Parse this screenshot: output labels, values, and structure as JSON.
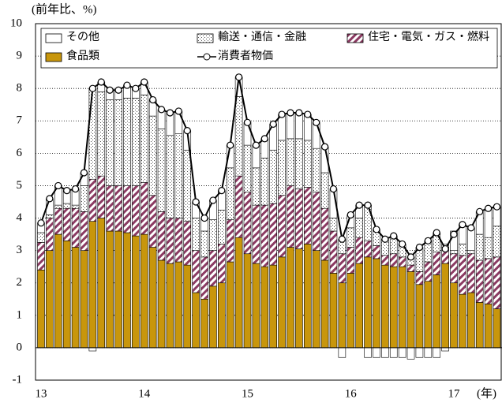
{
  "chart_data": {
    "type": "bar",
    "y_label": "(前年比、%)",
    "x_label": "(年)",
    "categories": [
      "13",
      null,
      null,
      null,
      null,
      null,
      null,
      null,
      null,
      null,
      null,
      null,
      "14",
      null,
      null,
      null,
      null,
      null,
      null,
      null,
      null,
      null,
      null,
      null,
      "15",
      null,
      null,
      null,
      null,
      null,
      null,
      null,
      null,
      null,
      null,
      null,
      "16",
      null,
      null,
      null,
      null,
      null,
      null,
      null,
      null,
      null,
      null,
      null,
      "17",
      null,
      null,
      null,
      null,
      null
    ],
    "ylim": [
      -1,
      10
    ],
    "yticks": [
      -1,
      0,
      1,
      2,
      3,
      4,
      5,
      6,
      7,
      8,
      9,
      10
    ],
    "grid": true,
    "series": [
      {
        "name": "食品類",
        "type": "bar",
        "color": "#c8960c",
        "values": [
          2.4,
          3.0,
          3.5,
          3.3,
          3.1,
          3.0,
          3.9,
          4.0,
          3.6,
          3.6,
          3.55,
          3.45,
          3.5,
          3.1,
          2.7,
          2.6,
          2.65,
          2.55,
          1.7,
          1.5,
          1.9,
          2.0,
          2.65,
          3.4,
          2.9,
          2.6,
          2.5,
          2.55,
          2.8,
          3.1,
          3.05,
          3.2,
          3.0,
          2.7,
          2.3,
          2.0,
          2.3,
          2.6,
          2.8,
          2.75,
          2.55,
          2.5,
          2.5,
          2.35,
          1.95,
          2.05,
          2.25,
          2.6,
          2.0,
          1.65,
          1.7,
          1.4,
          1.35,
          1.2
        ]
      },
      {
        "name": "住宅・電気・ガス・燃料",
        "type": "bar",
        "color": "#8b3a62",
        "values": [
          0.85,
          1.0,
          0.8,
          1.0,
          1.2,
          1.2,
          1.3,
          1.3,
          1.4,
          1.4,
          1.45,
          1.55,
          1.6,
          1.6,
          1.5,
          1.4,
          1.35,
          1.35,
          1.3,
          1.3,
          1.1,
          1.2,
          1.3,
          1.9,
          1.9,
          1.8,
          1.9,
          1.9,
          1.9,
          1.9,
          1.85,
          1.75,
          1.8,
          1.6,
          1.3,
          0.9,
          0.8,
          0.8,
          0.5,
          0.4,
          0.3,
          0.4,
          0.3,
          0.2,
          0.4,
          0.6,
          0.7,
          0.5,
          0.9,
          1.2,
          1.2,
          1.3,
          1.4,
          1.6
        ]
      },
      {
        "name": "輸送・通信・金融",
        "type": "bar",
        "color": "#555555",
        "values": [
          0.3,
          0.1,
          0.1,
          0.15,
          0.1,
          0.8,
          2.8,
          2.6,
          2.65,
          2.65,
          2.7,
          2.7,
          2.7,
          2.45,
          2.55,
          2.55,
          2.6,
          2.2,
          1.0,
          0.8,
          0.95,
          1.05,
          1.6,
          2.45,
          1.45,
          1.15,
          1.45,
          1.65,
          1.7,
          1.45,
          1.55,
          1.45,
          1.35,
          1.1,
          0.4,
          0.45,
          0.6,
          0.6,
          1.1,
          0.5,
          0.5,
          0.55,
          0.4,
          0.25,
          0.75,
          0.65,
          0.6,
          0.1,
          0.1,
          0.35,
          0.1,
          0.8,
          0.65,
          0.95
        ]
      },
      {
        "name": "その他",
        "type": "bar",
        "color": "#ffffff",
        "values": [
          0.3,
          0.5,
          0.6,
          0.4,
          0.5,
          0.4,
          -0.1,
          0.3,
          0.3,
          0.3,
          0.4,
          0.3,
          0.4,
          0.5,
          0.6,
          0.7,
          0.7,
          0.6,
          0.5,
          0.4,
          0.6,
          0.6,
          0.7,
          0.6,
          0.7,
          0.7,
          0.6,
          0.8,
          0.8,
          0.8,
          0.8,
          0.8,
          0.8,
          0.8,
          0.9,
          -0.3,
          0.4,
          0.4,
          -0.3,
          -0.3,
          -0.3,
          -0.3,
          -0.3,
          -0.35,
          -0.3,
          -0.3,
          -0.3,
          -0.1,
          0.6,
          0.6,
          0.7,
          0.7,
          0.9,
          0.6
        ]
      },
      {
        "name": "消費者物価",
        "type": "line",
        "color": "#000000",
        "values": [
          3.85,
          4.6,
          5.0,
          4.85,
          4.9,
          5.4,
          8.0,
          8.2,
          7.95,
          7.95,
          8.1,
          8.0,
          8.2,
          7.65,
          7.35,
          7.25,
          7.3,
          6.7,
          4.5,
          4.0,
          4.55,
          4.85,
          6.25,
          8.35,
          6.95,
          6.25,
          6.45,
          6.9,
          7.2,
          7.25,
          7.25,
          7.2,
          6.95,
          6.2,
          4.9,
          3.35,
          4.1,
          4.4,
          4.4,
          3.65,
          3.35,
          3.45,
          3.2,
          2.8,
          3.1,
          3.3,
          3.55,
          3.05,
          3.5,
          3.8,
          3.7,
          4.2,
          4.3,
          4.35
        ]
      }
    ]
  }
}
